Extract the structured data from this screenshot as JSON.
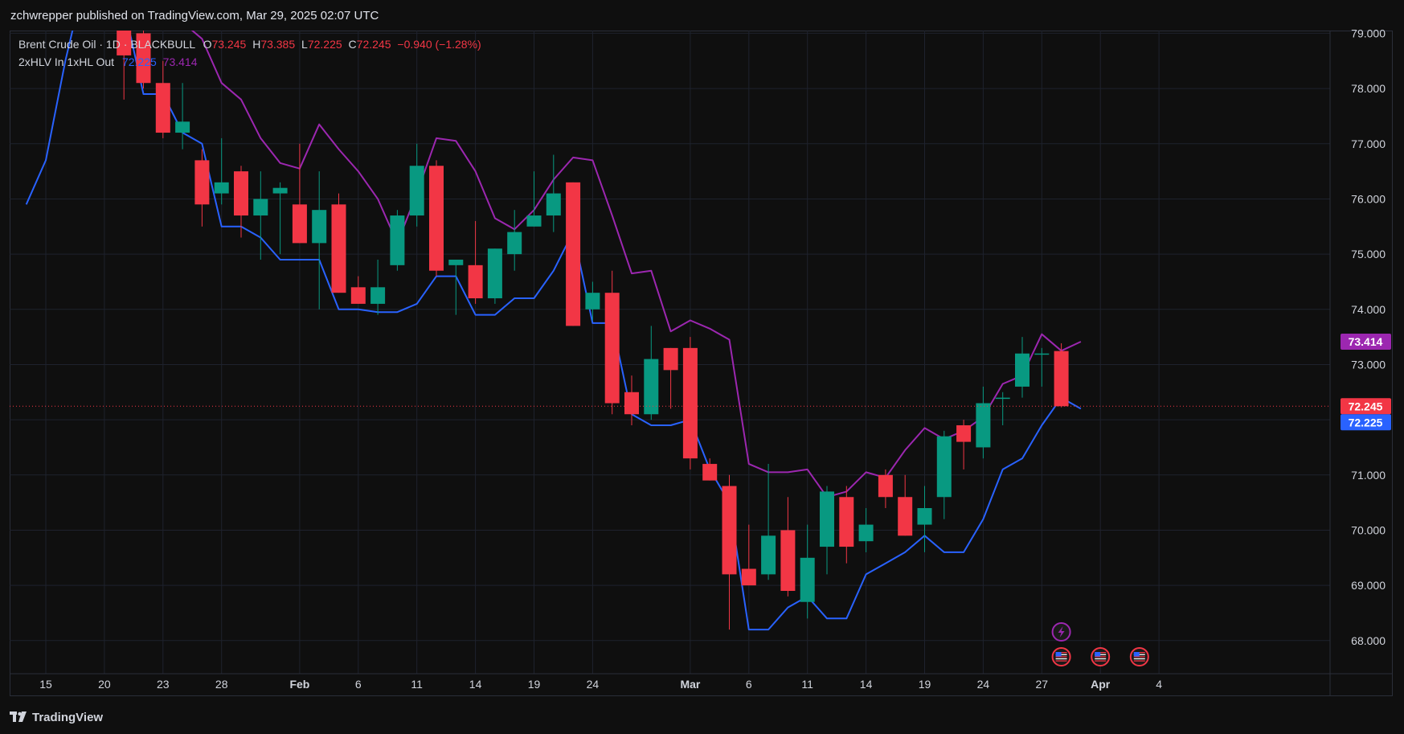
{
  "publisher_line": "zchwrepper published on TradingView.com, Mar 29, 2025 02:07 UTC",
  "legend": {
    "symbol": "Brent Crude Oil · 1D · BLACKBULL",
    "o_label": "O",
    "o_value": "73.245",
    "h_label": "H",
    "h_value": "73.385",
    "l_label": "L",
    "l_value": "72.225",
    "c_label": "C",
    "c_value": "72.245",
    "change": "−0.940 (−1.28%)",
    "indicator_name": "2xHLV In 1xHL Out",
    "indicator_value_1": "72.225",
    "indicator_value_2": "73.414"
  },
  "footer": {
    "brand": "TradingView"
  },
  "colors": {
    "up": "#089981",
    "down": "#f23645",
    "band_low": "#2962ff",
    "band_high": "#9c27b0",
    "background": "#0f0f0f",
    "grid": "#1e222d",
    "text": "#d1d4dc"
  },
  "chart_data": {
    "type": "candlestick",
    "y_axis": {
      "ticks": [
        "68.000",
        "69.000",
        "70.000",
        "71.000",
        "72.000",
        "73.000",
        "74.000",
        "75.000",
        "76.000",
        "77.000",
        "78.000",
        "79.000"
      ],
      "range": [
        67.4,
        79.05
      ],
      "side": "right"
    },
    "x_axis": {
      "ticks": [
        {
          "label": "15",
          "date": "2025-01-15"
        },
        {
          "label": "20",
          "date": "2025-01-20"
        },
        {
          "label": "23",
          "date": "2025-01-23"
        },
        {
          "label": "28",
          "date": "2025-01-28"
        },
        {
          "label": "Feb",
          "date": "2025-02-03"
        },
        {
          "label": "6",
          "date": "2025-02-06"
        },
        {
          "label": "11",
          "date": "2025-02-11"
        },
        {
          "label": "14",
          "date": "2025-02-14"
        },
        {
          "label": "19",
          "date": "2025-02-19"
        },
        {
          "label": "24",
          "date": "2025-02-24"
        },
        {
          "label": "Mar",
          "date": "2025-03-03"
        },
        {
          "label": "6",
          "date": "2025-03-06"
        },
        {
          "label": "11",
          "date": "2025-03-11"
        },
        {
          "label": "14",
          "date": "2025-03-14"
        },
        {
          "label": "19",
          "date": "2025-03-19"
        },
        {
          "label": "24",
          "date": "2025-03-24"
        },
        {
          "label": "27",
          "date": "2025-03-27"
        },
        {
          "label": "Apr",
          "date": "2025-04-01"
        },
        {
          "label": "4",
          "date": "2025-04-04"
        }
      ]
    },
    "candles": [
      {
        "date": "2025-01-21",
        "o": 79.6,
        "h": 79.8,
        "l": 77.8,
        "c": 78.6
      },
      {
        "date": "2025-01-22",
        "o": 79.0,
        "h": 79.3,
        "l": 78.0,
        "c": 78.1
      },
      {
        "date": "2025-01-23",
        "o": 78.1,
        "h": 78.5,
        "l": 77.1,
        "c": 77.2
      },
      {
        "date": "2025-01-24",
        "o": 77.2,
        "h": 78.1,
        "l": 76.9,
        "c": 77.4
      },
      {
        "date": "2025-01-27",
        "o": 76.7,
        "h": 76.9,
        "l": 75.5,
        "c": 75.9
      },
      {
        "date": "2025-01-28",
        "o": 76.1,
        "h": 77.1,
        "l": 75.9,
        "c": 76.3
      },
      {
        "date": "2025-01-29",
        "o": 76.5,
        "h": 76.6,
        "l": 75.3,
        "c": 75.7
      },
      {
        "date": "2025-01-30",
        "o": 75.7,
        "h": 76.5,
        "l": 74.9,
        "c": 76.0
      },
      {
        "date": "2025-01-31",
        "o": 76.1,
        "h": 76.3,
        "l": 75.0,
        "c": 76.2
      },
      {
        "date": "2025-02-03",
        "o": 75.9,
        "h": 77.0,
        "l": 75.2,
        "c": 75.2
      },
      {
        "date": "2025-02-04",
        "o": 75.2,
        "h": 76.5,
        "l": 74.0,
        "c": 75.8
      },
      {
        "date": "2025-02-05",
        "o": 75.9,
        "h": 76.1,
        "l": 74.3,
        "c": 74.3
      },
      {
        "date": "2025-02-06",
        "o": 74.4,
        "h": 74.6,
        "l": 74.1,
        "c": 74.1
      },
      {
        "date": "2025-02-07",
        "o": 74.1,
        "h": 74.9,
        "l": 73.9,
        "c": 74.4
      },
      {
        "date": "2025-02-10",
        "o": 74.8,
        "h": 75.8,
        "l": 74.7,
        "c": 75.7
      },
      {
        "date": "2025-02-11",
        "o": 75.7,
        "h": 77.0,
        "l": 75.5,
        "c": 76.6
      },
      {
        "date": "2025-02-12",
        "o": 76.6,
        "h": 76.7,
        "l": 74.6,
        "c": 74.7
      },
      {
        "date": "2025-02-13",
        "o": 74.8,
        "h": 74.9,
        "l": 73.9,
        "c": 74.9
      },
      {
        "date": "2025-02-14",
        "o": 74.8,
        "h": 75.6,
        "l": 74.1,
        "c": 74.2
      },
      {
        "date": "2025-02-17",
        "o": 74.2,
        "h": 75.1,
        "l": 74.1,
        "c": 75.1
      },
      {
        "date": "2025-02-18",
        "o": 75.0,
        "h": 75.8,
        "l": 74.7,
        "c": 75.4
      },
      {
        "date": "2025-02-19",
        "o": 75.5,
        "h": 76.5,
        "l": 75.5,
        "c": 75.7
      },
      {
        "date": "2025-02-20",
        "o": 75.7,
        "h": 76.8,
        "l": 75.4,
        "c": 76.1
      },
      {
        "date": "2025-02-21",
        "o": 76.3,
        "h": 76.3,
        "l": 73.7,
        "c": 73.7
      },
      {
        "date": "2025-02-24",
        "o": 74.0,
        "h": 74.5,
        "l": 73.8,
        "c": 74.3
      },
      {
        "date": "2025-02-25",
        "o": 74.3,
        "h": 74.7,
        "l": 72.1,
        "c": 72.3
      },
      {
        "date": "2025-02-26",
        "o": 72.5,
        "h": 72.8,
        "l": 71.9,
        "c": 72.1
      },
      {
        "date": "2025-02-27",
        "o": 72.1,
        "h": 73.7,
        "l": 72.0,
        "c": 73.1
      },
      {
        "date": "2025-02-28",
        "o": 73.3,
        "h": 73.3,
        "l": 72.2,
        "c": 72.9
      },
      {
        "date": "2025-03-03",
        "o": 73.3,
        "h": 73.5,
        "l": 71.1,
        "c": 71.3
      },
      {
        "date": "2025-03-04",
        "o": 71.2,
        "h": 71.3,
        "l": 70.9,
        "c": 70.9
      },
      {
        "date": "2025-03-05",
        "o": 70.8,
        "h": 71.0,
        "l": 68.2,
        "c": 69.2
      },
      {
        "date": "2025-03-06",
        "o": 69.3,
        "h": 70.1,
        "l": 69.0,
        "c": 69.0
      },
      {
        "date": "2025-03-07",
        "o": 69.2,
        "h": 71.2,
        "l": 69.1,
        "c": 69.9
      },
      {
        "date": "2025-03-10",
        "o": 70.0,
        "h": 70.6,
        "l": 68.8,
        "c": 68.9
      },
      {
        "date": "2025-03-11",
        "o": 68.7,
        "h": 70.1,
        "l": 68.4,
        "c": 69.5
      },
      {
        "date": "2025-03-12",
        "o": 69.7,
        "h": 70.8,
        "l": 69.2,
        "c": 70.7
      },
      {
        "date": "2025-03-13",
        "o": 70.6,
        "h": 70.8,
        "l": 69.4,
        "c": 69.7
      },
      {
        "date": "2025-03-14",
        "o": 69.8,
        "h": 70.4,
        "l": 69.6,
        "c": 70.1
      },
      {
        "date": "2025-03-17",
        "o": 71.0,
        "h": 71.1,
        "l": 70.4,
        "c": 70.6
      },
      {
        "date": "2025-03-18",
        "o": 70.6,
        "h": 71.0,
        "l": 69.9,
        "c": 69.9
      },
      {
        "date": "2025-03-19",
        "o": 70.1,
        "h": 70.8,
        "l": 69.6,
        "c": 70.4
      },
      {
        "date": "2025-03-20",
        "o": 70.6,
        "h": 71.8,
        "l": 70.2,
        "c": 71.7
      },
      {
        "date": "2025-03-21",
        "o": 71.9,
        "h": 72.0,
        "l": 71.1,
        "c": 71.6
      },
      {
        "date": "2025-03-24",
        "o": 71.5,
        "h": 72.6,
        "l": 71.3,
        "c": 72.3
      },
      {
        "date": "2025-03-25",
        "o": 72.4,
        "h": 72.5,
        "l": 71.9,
        "c": 72.4
      },
      {
        "date": "2025-03-26",
        "o": 72.6,
        "h": 73.5,
        "l": 72.4,
        "c": 73.2
      },
      {
        "date": "2025-03-27",
        "o": 73.2,
        "h": 73.3,
        "l": 72.6,
        "c": 73.2
      },
      {
        "date": "2025-03-28",
        "o": 73.245,
        "h": 73.385,
        "l": 72.225,
        "c": 72.245
      }
    ],
    "series": [
      {
        "color": "#2962ff",
        "points": [
          {
            "date": "2025-01-14",
            "v": 75.9
          },
          {
            "date": "2025-01-15",
            "v": 76.7
          },
          {
            "date": "2025-01-16",
            "v": 78.5
          },
          {
            "date": "2025-01-17",
            "v": 80.0
          },
          {
            "date": "2025-01-20",
            "v": 79.2
          },
          {
            "date": "2025-01-21",
            "v": 79.5
          },
          {
            "date": "2025-01-22",
            "v": 77.9
          },
          {
            "date": "2025-01-23",
            "v": 77.9
          },
          {
            "date": "2025-01-24",
            "v": 77.2
          },
          {
            "date": "2025-01-27",
            "v": 77.0
          },
          {
            "date": "2025-01-28",
            "v": 75.5
          },
          {
            "date": "2025-01-29",
            "v": 75.5
          },
          {
            "date": "2025-01-30",
            "v": 75.3
          },
          {
            "date": "2025-01-31",
            "v": 74.9
          },
          {
            "date": "2025-02-03",
            "v": 74.9
          },
          {
            "date": "2025-02-04",
            "v": 74.9
          },
          {
            "date": "2025-02-05",
            "v": 74.0
          },
          {
            "date": "2025-02-06",
            "v": 74.0
          },
          {
            "date": "2025-02-07",
            "v": 73.95
          },
          {
            "date": "2025-02-10",
            "v": 73.95
          },
          {
            "date": "2025-02-11",
            "v": 74.1
          },
          {
            "date": "2025-02-12",
            "v": 74.6
          },
          {
            "date": "2025-02-13",
            "v": 74.6
          },
          {
            "date": "2025-02-14",
            "v": 73.9
          },
          {
            "date": "2025-02-17",
            "v": 73.9
          },
          {
            "date": "2025-02-18",
            "v": 74.2
          },
          {
            "date": "2025-02-19",
            "v": 74.2
          },
          {
            "date": "2025-02-20",
            "v": 74.7
          },
          {
            "date": "2025-02-21",
            "v": 75.4
          },
          {
            "date": "2025-02-24",
            "v": 73.75
          },
          {
            "date": "2025-02-25",
            "v": 73.75
          },
          {
            "date": "2025-02-26",
            "v": 72.1
          },
          {
            "date": "2025-02-27",
            "v": 71.9
          },
          {
            "date": "2025-02-28",
            "v": 71.9
          },
          {
            "date": "2025-03-03",
            "v": 72.0
          },
          {
            "date": "2025-03-04",
            "v": 71.1
          },
          {
            "date": "2025-03-05",
            "v": 70.5
          },
          {
            "date": "2025-03-06",
            "v": 68.2
          },
          {
            "date": "2025-03-07",
            "v": 68.2
          },
          {
            "date": "2025-03-10",
            "v": 68.6
          },
          {
            "date": "2025-03-11",
            "v": 68.8
          },
          {
            "date": "2025-03-12",
            "v": 68.4
          },
          {
            "date": "2025-03-13",
            "v": 68.4
          },
          {
            "date": "2025-03-14",
            "v": 69.2
          },
          {
            "date": "2025-03-17",
            "v": 69.4
          },
          {
            "date": "2025-03-18",
            "v": 69.6
          },
          {
            "date": "2025-03-19",
            "v": 69.9
          },
          {
            "date": "2025-03-20",
            "v": 69.6
          },
          {
            "date": "2025-03-21",
            "v": 69.6
          },
          {
            "date": "2025-03-24",
            "v": 70.2
          },
          {
            "date": "2025-03-25",
            "v": 71.1
          },
          {
            "date": "2025-03-26",
            "v": 71.3
          },
          {
            "date": "2025-03-27",
            "v": 71.9
          },
          {
            "date": "2025-03-28",
            "v": 72.4
          },
          {
            "date": "2025-03-31",
            "v": 72.2
          }
        ]
      },
      {
        "color": "#9c27b0",
        "points": [
          {
            "date": "2025-01-23",
            "v": 79.7
          },
          {
            "date": "2025-01-24",
            "v": 79.2
          },
          {
            "date": "2025-01-27",
            "v": 78.9
          },
          {
            "date": "2025-01-28",
            "v": 78.1
          },
          {
            "date": "2025-01-29",
            "v": 77.8
          },
          {
            "date": "2025-01-30",
            "v": 77.1
          },
          {
            "date": "2025-01-31",
            "v": 76.65
          },
          {
            "date": "2025-02-03",
            "v": 76.55
          },
          {
            "date": "2025-02-04",
            "v": 77.35
          },
          {
            "date": "2025-02-05",
            "v": 76.9
          },
          {
            "date": "2025-02-06",
            "v": 76.5
          },
          {
            "date": "2025-02-07",
            "v": 76.0
          },
          {
            "date": "2025-02-10",
            "v": 75.2
          },
          {
            "date": "2025-02-11",
            "v": 76.1
          },
          {
            "date": "2025-02-12",
            "v": 77.1
          },
          {
            "date": "2025-02-13",
            "v": 77.05
          },
          {
            "date": "2025-02-14",
            "v": 76.5
          },
          {
            "date": "2025-02-17",
            "v": 75.65
          },
          {
            "date": "2025-02-18",
            "v": 75.45
          },
          {
            "date": "2025-02-19",
            "v": 75.8
          },
          {
            "date": "2025-02-20",
            "v": 76.35
          },
          {
            "date": "2025-02-21",
            "v": 76.75
          },
          {
            "date": "2025-02-24",
            "v": 76.7
          },
          {
            "date": "2025-02-25",
            "v": 75.7
          },
          {
            "date": "2025-02-26",
            "v": 74.65
          },
          {
            "date": "2025-02-27",
            "v": 74.7
          },
          {
            "date": "2025-02-28",
            "v": 73.6
          },
          {
            "date": "2025-03-03",
            "v": 73.8
          },
          {
            "date": "2025-03-04",
            "v": 73.65
          },
          {
            "date": "2025-03-05",
            "v": 73.45
          },
          {
            "date": "2025-03-06",
            "v": 71.2
          },
          {
            "date": "2025-03-07",
            "v": 71.05
          },
          {
            "date": "2025-03-10",
            "v": 71.05
          },
          {
            "date": "2025-03-11",
            "v": 71.1
          },
          {
            "date": "2025-03-12",
            "v": 70.6
          },
          {
            "date": "2025-03-13",
            "v": 70.7
          },
          {
            "date": "2025-03-14",
            "v": 71.05
          },
          {
            "date": "2025-03-17",
            "v": 70.95
          },
          {
            "date": "2025-03-18",
            "v": 71.45
          },
          {
            "date": "2025-03-19",
            "v": 71.85
          },
          {
            "date": "2025-03-20",
            "v": 71.65
          },
          {
            "date": "2025-03-21",
            "v": 71.8
          },
          {
            "date": "2025-03-24",
            "v": 72.05
          },
          {
            "date": "2025-03-25",
            "v": 72.65
          },
          {
            "date": "2025-03-26",
            "v": 72.8
          },
          {
            "date": "2025-03-27",
            "v": 73.55
          },
          {
            "date": "2025-03-28",
            "v": 73.25
          },
          {
            "date": "2025-03-31",
            "v": 73.414
          }
        ]
      }
    ],
    "price_labels": [
      {
        "value": 73.414,
        "text": "73.414",
        "color": "#9c27b0"
      },
      {
        "value": 72.245,
        "text": "72.245",
        "color": "#f23645"
      },
      {
        "value": 72.225,
        "text": "72.225",
        "color": "#2962ff"
      }
    ],
    "current_price": 72.245,
    "events": [
      {
        "date": "2025-03-28",
        "type": "lightning-icon",
        "row": 0
      },
      {
        "date": "2025-03-28",
        "type": "us-flag-icon",
        "row": 1
      },
      {
        "date": "2025-04-01",
        "type": "us-flag-icon",
        "row": 1
      },
      {
        "date": "2025-04-03",
        "type": "us-flag-icon",
        "row": 1
      }
    ]
  }
}
